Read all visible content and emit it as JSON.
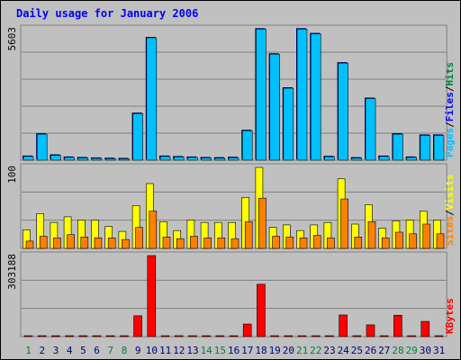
{
  "chart_data": {
    "type": "bar",
    "title": "Daily usage for January 2006",
    "categories": [
      "1",
      "2",
      "3",
      "4",
      "5",
      "6",
      "7",
      "8",
      "9",
      "10",
      "11",
      "12",
      "13",
      "14",
      "15",
      "16",
      "17",
      "18",
      "19",
      "20",
      "21",
      "22",
      "23",
      "24",
      "25",
      "26",
      "27",
      "28",
      "29",
      "30",
      "31"
    ],
    "weekend_days": [
      "1",
      "7",
      "8",
      "14",
      "15",
      "21",
      "22",
      "28",
      "29"
    ],
    "colors": {
      "pages": "#00c0ff",
      "pages_shade": "#000066",
      "files": "#0000ff",
      "hits": "#008040",
      "visits": "#ffff00",
      "sites": "#ff8000",
      "kbytes": "#ff0000",
      "weekend": "#008040",
      "weekday": "#000080",
      "title": "#0000ff"
    },
    "panels": [
      {
        "id": "hits",
        "axis_label": "5603",
        "max": 5603,
        "legend": [
          "Pages",
          "/",
          "Files",
          "/",
          "Hits"
        ],
        "series": [
          {
            "name": "Pages",
            "values": [
              160,
              1110,
              210,
              120,
              100,
              80,
              70,
              60,
              1990,
              5220,
              160,
              140,
              120,
              100,
              90,
              110,
              1260,
              5590,
              4520,
              3070,
              5590,
              5390,
              150,
              4140,
              90,
              2630,
              160,
              1110,
              120,
              1060,
              1060
            ]
          }
        ]
      },
      {
        "id": "visits",
        "axis_label": "100",
        "max": 100,
        "legend": [
          "Sites",
          "/",
          "Visits"
        ],
        "series": [
          {
            "name": "Visits",
            "values": [
              23,
              43,
              32,
              39,
              35,
              35,
              27,
              21,
              53,
              80,
              33,
              22,
              35,
              32,
              32,
              32,
              63,
              100,
              26,
              29,
              22,
              29,
              32,
              86,
              30,
              54,
              25,
              34,
              35,
              46,
              35
            ]
          },
          {
            "name": "Sites",
            "values": [
              9,
              15,
              13,
              17,
              14,
              13,
              13,
              11,
              26,
              46,
              14,
              12,
              15,
              13,
              13,
              12,
              33,
              62,
              15,
              14,
              13,
              16,
              13,
              61,
              14,
              33,
              13,
              20,
              18,
              30,
              18
            ]
          }
        ]
      },
      {
        "id": "kbytes",
        "axis_label": "303188",
        "max": 303188,
        "legend": [
          "KBytes"
        ],
        "series": [
          {
            "name": "KBytes",
            "values": [
              2000,
              2000,
              2000,
              2000,
              2000,
              2000,
              2000,
              2000,
              78000,
              303188,
              2000,
              2000,
              2000,
              2000,
              2000,
              2000,
              47000,
              196000,
              2000,
              2000,
              2000,
              2000,
              2000,
              81000,
              2000,
              44000,
              2000,
              80000,
              2000,
              57000,
              2000
            ]
          }
        ]
      }
    ]
  }
}
